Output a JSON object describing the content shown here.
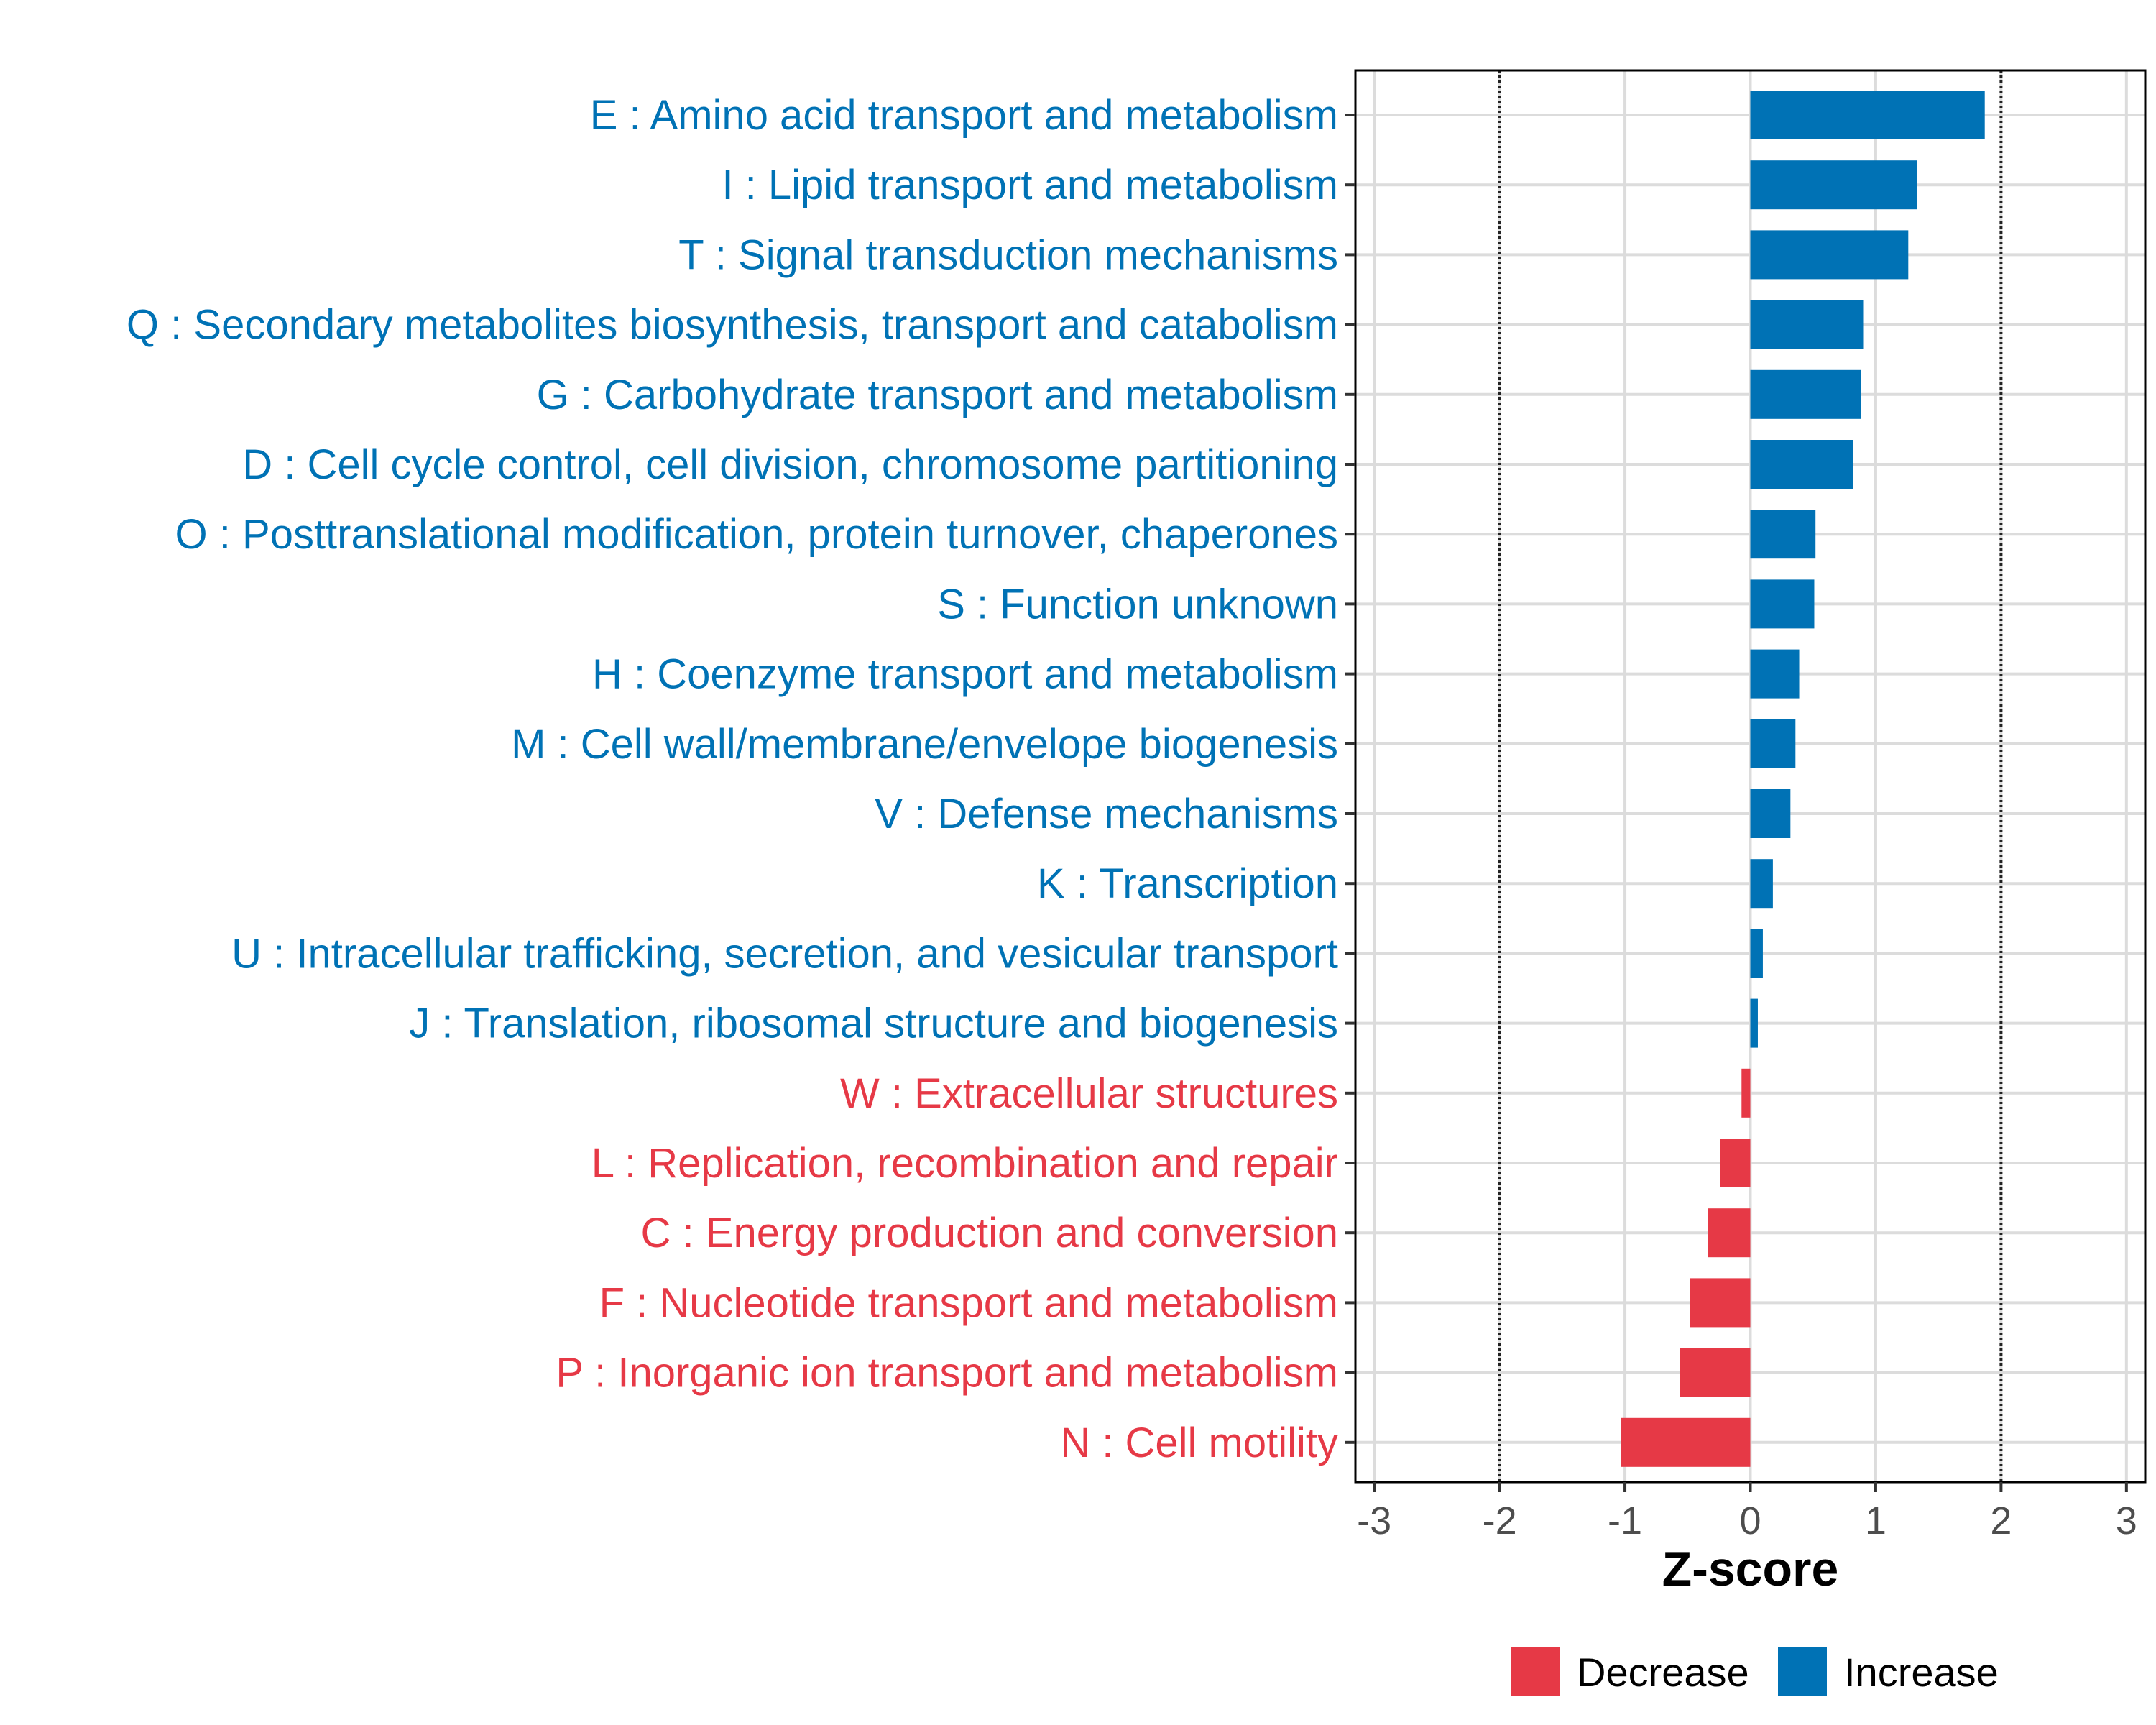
{
  "chart_data": {
    "type": "bar",
    "orientation": "horizontal",
    "title": "",
    "xlabel": "Z-score",
    "ylabel": "",
    "xlim": [
      -3.15,
      3.15
    ],
    "xticks": [
      -3,
      -2,
      -1,
      0,
      1,
      2,
      3
    ],
    "xtick_labels": [
      "-3",
      "-2",
      "-1",
      "0",
      "1",
      "2",
      "3"
    ],
    "reference_lines": [
      -2,
      2
    ],
    "grid": true,
    "colors": {
      "Increase": "#0072b5",
      "Decrease": "#e63946"
    },
    "categories": [
      "E : Amino acid transport and metabolism",
      "I : Lipid transport and metabolism",
      "T : Signal transduction mechanisms",
      "Q : Secondary metabolites biosynthesis, transport and catabolism",
      "G : Carbohydrate transport and metabolism",
      "D : Cell cycle control, cell division, chromosome partitioning",
      "O : Posttranslational modification, protein turnover, chaperones",
      "S : Function unknown",
      "H : Coenzyme transport and metabolism",
      "M : Cell wall/membrane/envelope biogenesis",
      "V : Defense mechanisms",
      "K : Transcription",
      "U : Intracellular trafficking, secretion, and vesicular transport",
      "J : Translation, ribosomal structure and biogenesis",
      "W : Extracellular structures",
      "L : Replication, recombination and repair",
      "C : Energy production and conversion",
      "F : Nucleotide transport and metabolism",
      "P : Inorganic ion transport and metabolism",
      "N : Cell motility"
    ],
    "values": [
      1.87,
      1.33,
      1.26,
      0.9,
      0.88,
      0.82,
      0.52,
      0.51,
      0.39,
      0.36,
      0.32,
      0.18,
      0.1,
      0.06,
      -0.07,
      -0.24,
      -0.34,
      -0.48,
      -0.56,
      -1.03
    ],
    "groups": [
      "Increase",
      "Increase",
      "Increase",
      "Increase",
      "Increase",
      "Increase",
      "Increase",
      "Increase",
      "Increase",
      "Increase",
      "Increase",
      "Increase",
      "Increase",
      "Increase",
      "Decrease",
      "Decrease",
      "Decrease",
      "Decrease",
      "Decrease",
      "Decrease"
    ],
    "legend": {
      "position": "bottom",
      "entries": [
        "Decrease",
        "Increase"
      ]
    }
  }
}
